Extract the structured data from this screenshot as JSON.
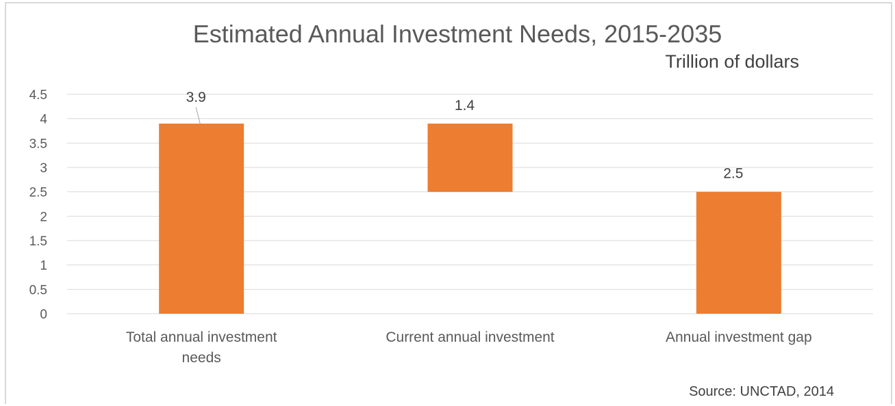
{
  "chart_data": {
    "type": "bar",
    "subtype": "waterfall",
    "title": "Estimated Annual Investment Needs, 2015-2035",
    "subtitle": "Trillion of dollars",
    "source": "Source: UNCTAD, 2014",
    "categories": [
      [
        "Total annual investment",
        "needs"
      ],
      [
        "Current annual investment"
      ],
      [
        "Annual investment gap"
      ]
    ],
    "values": [
      3.9,
      1.4,
      2.5
    ],
    "data_labels": [
      "3.9",
      "1.4",
      "2.5"
    ],
    "bar_ranges": [
      [
        0,
        3.9
      ],
      [
        2.5,
        3.9
      ],
      [
        0,
        2.5
      ]
    ],
    "y_ticks": [
      "0",
      "0.5",
      "1",
      "1.5",
      "2",
      "2.5",
      "3",
      "3.5",
      "4",
      "4.5"
    ],
    "ylim": [
      0,
      4.5
    ],
    "grid": true,
    "legend": "none",
    "bar_color": "#ED7D31"
  }
}
